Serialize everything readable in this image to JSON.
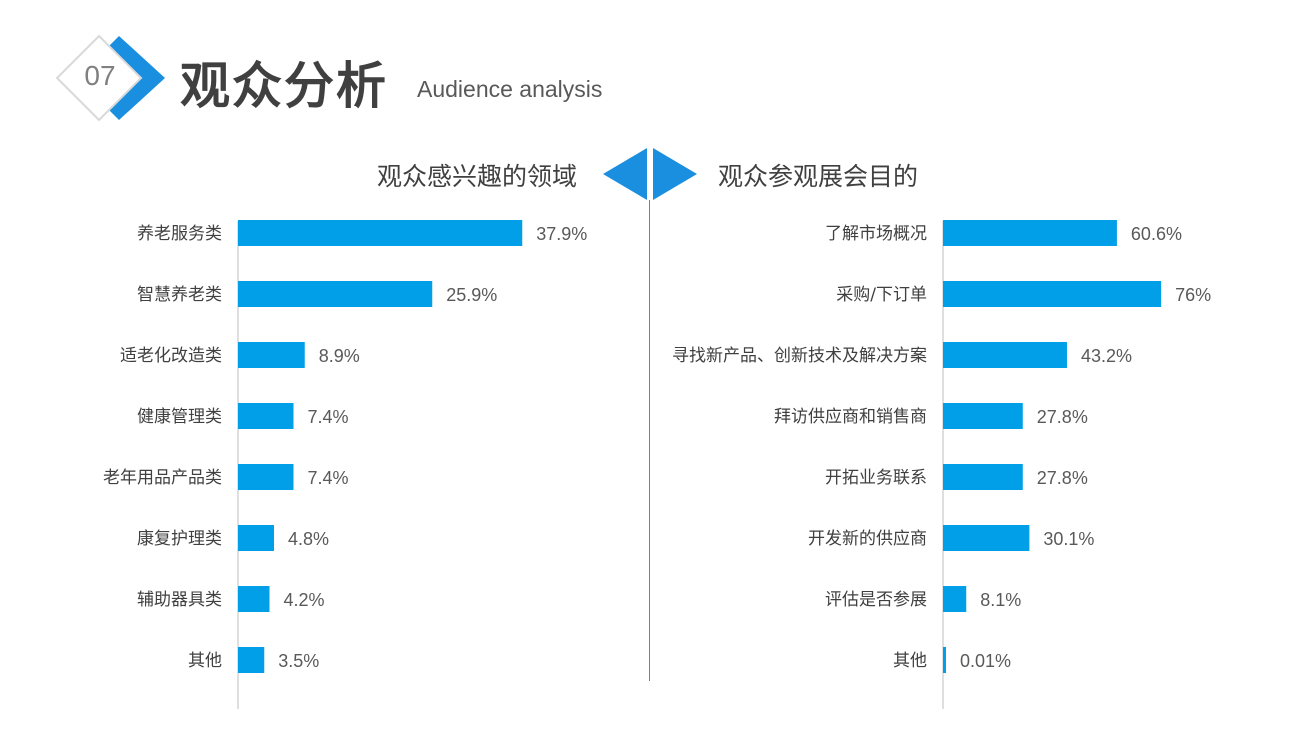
{
  "header": {
    "section_number": "07",
    "title": "观众分析",
    "subtitle": "Audience analysis"
  },
  "colors": {
    "bar": "#009fe8",
    "accent_blue": "#1a8fe0",
    "text": "#404040"
  },
  "chart_data": [
    {
      "type": "bar",
      "orientation": "horizontal",
      "title": "观众感兴趣的领域",
      "categories": [
        "养老服务类",
        "智慧养老类",
        "适老化改造类",
        "健康管理类",
        "老年用品产品类",
        "康复护理类",
        "辅助器具类",
        "其他"
      ],
      "values": [
        37.9,
        25.9,
        8.9,
        7.4,
        7.4,
        4.8,
        4.2,
        3.5
      ],
      "value_labels": [
        "37.9%",
        "25.9%",
        "8.9%",
        "7.4%",
        "7.4%",
        "4.8%",
        "4.2%",
        "3.5%"
      ],
      "unit": "%",
      "grid": false
    },
    {
      "type": "bar",
      "orientation": "horizontal",
      "title": "观众参观展会目的",
      "categories": [
        "了解市场概况",
        "采购/下订单",
        "寻找新产品、创新技术及解决方案",
        "拜访供应商和销售商",
        "开拓业务联系",
        "开发新的供应商",
        "评估是否参展",
        "其他"
      ],
      "values": [
        60.6,
        76,
        43.2,
        27.8,
        27.8,
        30.1,
        8.1,
        0.01
      ],
      "value_labels": [
        "60.6%",
        "76%",
        "43.2%",
        "27.8%",
        "27.8%",
        "30.1%",
        "8.1%",
        "0.01%"
      ],
      "unit": "%",
      "grid": false
    }
  ]
}
